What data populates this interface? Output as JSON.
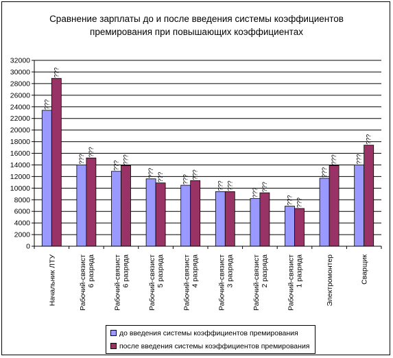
{
  "chart_data": {
    "type": "bar",
    "title_lines": [
      "Сравнение зарплаты до и после введения системы коэффициентов",
      "премирования при повышающих коэффициентах"
    ],
    "categories": [
      [
        "Начальник ЛТУ"
      ],
      [
        "Рабочий-связист",
        "6 разряда"
      ],
      [
        "Рабочий-связист",
        "6 разряда"
      ],
      [
        "Рабочий-связист",
        "5 разряда"
      ],
      [
        "Рабочий-связист",
        "4 разряда"
      ],
      [
        "Рабочий-связист",
        "3 разряда"
      ],
      [
        "Рабочий-связист",
        "2 разряда"
      ],
      [
        "Рабочий-связист",
        "1 разряда"
      ],
      [
        "Электромонтер"
      ],
      [
        "Сварщик"
      ]
    ],
    "series": [
      {
        "name": "до введения системы коэффициентов премирования",
        "color": "#9999ff",
        "values": [
          23400,
          14000,
          12900,
          11600,
          10500,
          9400,
          8200,
          6900,
          11700,
          14000
        ]
      },
      {
        "name": "после введения системы коэффициентов премирования",
        "color": "#993366",
        "values": [
          28900,
          15200,
          13900,
          10900,
          11300,
          9400,
          9200,
          6500,
          13900,
          17400
        ]
      }
    ],
    "data_label_glyph": "???",
    "ylim": [
      0,
      32000
    ],
    "y_ticks": [
      0,
      2000,
      4000,
      6000,
      8000,
      10000,
      12000,
      14000,
      16000,
      18000,
      20000,
      22000,
      24000,
      26000,
      28000,
      30000,
      32000
    ],
    "grid": true,
    "legend_position": "bottom"
  }
}
